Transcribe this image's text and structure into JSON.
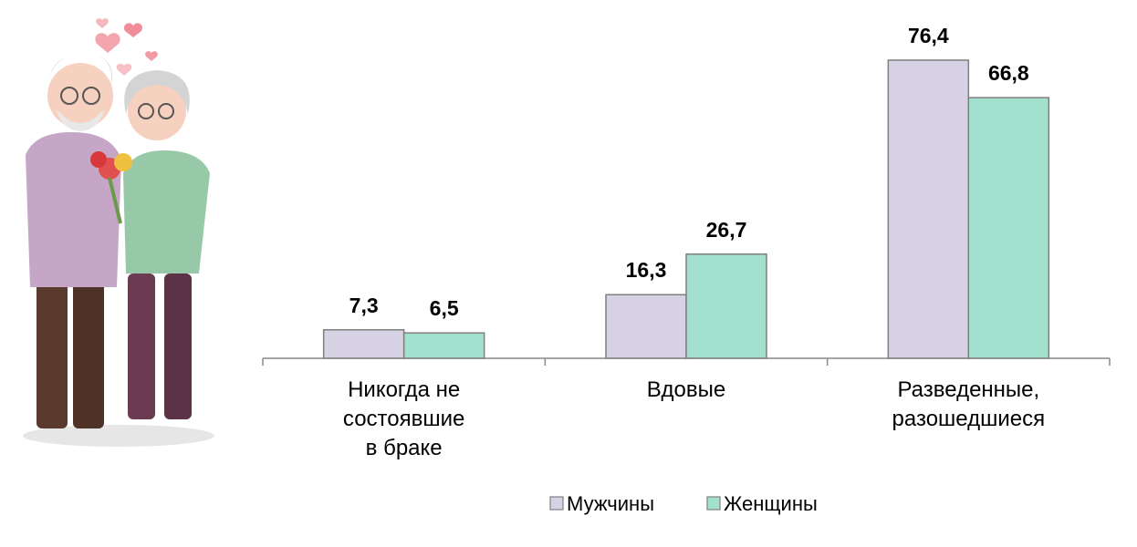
{
  "chart_data": {
    "type": "bar",
    "categories": [
      "Никогда не\nсостоявшие\nв браке",
      "Вдовые",
      "Разведенные,\nразошедшиеся"
    ],
    "series": [
      {
        "name": "Мужчины",
        "color": "#d6d1e3",
        "values": [
          7.3,
          16.3,
          76.4
        ],
        "value_labels": [
          "7,3",
          "16,3",
          "76,4"
        ]
      },
      {
        "name": "Женщины",
        "color": "#a3e0cd",
        "values": [
          6.5,
          26.7,
          66.8
        ],
        "value_labels": [
          "6,5",
          "26,7",
          "66,8"
        ]
      }
    ]
  }
}
